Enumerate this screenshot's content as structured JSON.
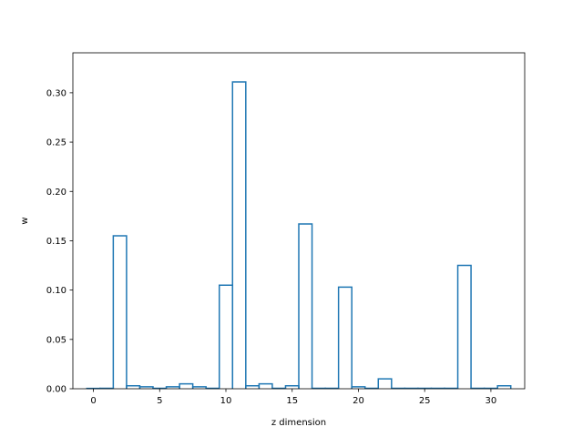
{
  "chart_data": {
    "type": "bar",
    "style": "step-outline",
    "x": [
      0,
      1,
      2,
      3,
      4,
      5,
      6,
      7,
      8,
      9,
      10,
      11,
      12,
      13,
      14,
      15,
      16,
      17,
      18,
      19,
      20,
      21,
      22,
      23,
      24,
      25,
      26,
      27,
      28,
      29,
      30,
      31
    ],
    "values": [
      0.0004,
      0.0005,
      0.155,
      0.003,
      0.002,
      0.0005,
      0.002,
      0.005,
      0.002,
      0.0005,
      0.105,
      0.311,
      0.003,
      0.005,
      0.0005,
      0.003,
      0.167,
      0.0005,
      0.0005,
      0.103,
      0.002,
      0.0005,
      0.01,
      0.0005,
      0.0005,
      0.0005,
      0.0005,
      0.0005,
      0.125,
      0.0005,
      0.0005,
      0.003
    ],
    "xlabel": "z dimension",
    "ylabel": "w",
    "xlim": [
      -1.55,
      32.55
    ],
    "ylim": [
      0,
      0.3405
    ],
    "xticks": [
      0,
      5,
      10,
      15,
      20,
      25,
      30
    ],
    "yticks": [
      0.0,
      0.05,
      0.1,
      0.15,
      0.2,
      0.25,
      0.3
    ],
    "ytick_labels": [
      "0.00",
      "0.05",
      "0.10",
      "0.15",
      "0.20",
      "0.25",
      "0.30"
    ],
    "line_color": "#1f77b4",
    "grid": false
  }
}
